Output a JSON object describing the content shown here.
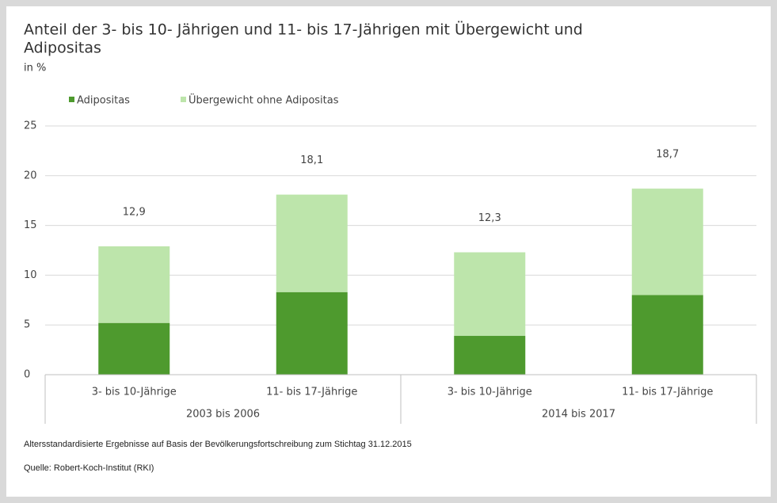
{
  "chart_data": {
    "type": "stacked-bar",
    "title_lines": [
      "Anteil der 3- bis 10- Jährigen und 11- bis 17-Jährigen mit Übergewicht und",
      "Adipositas"
    ],
    "subtitle": "in %",
    "categories": [
      "3- bis 10-Jährige",
      "11- bis 17-Jährige",
      "3- bis 10-Jährige",
      "11- bis 17-Jährige"
    ],
    "groups": [
      "2003 bis 2006",
      "2014 bis 2017"
    ],
    "series": [
      {
        "name": "Adipositas",
        "color": "#4e9a2e",
        "values": [
          5.2,
          8.3,
          3.9,
          8.0
        ]
      },
      {
        "name": "Übergewicht ohne Adipositas",
        "color": "#bde5ab",
        "values": [
          7.7,
          9.8,
          8.4,
          10.7
        ]
      }
    ],
    "totals": [
      12.9,
      18.1,
      12.3,
      18.7
    ],
    "total_labels": [
      "12,9",
      "18,1",
      "12,3",
      "18,7"
    ],
    "ylim": [
      0,
      25
    ],
    "yticks": [
      0,
      5,
      10,
      15,
      20,
      25
    ],
    "grid": true,
    "footnotes": [
      "Altersstandardisierte Ergebnisse auf Basis der Bevölkerungsfortschreibung zum Stichtag 31.12.2015",
      "Quelle: Robert-Koch-Institut (RKI)"
    ]
  }
}
